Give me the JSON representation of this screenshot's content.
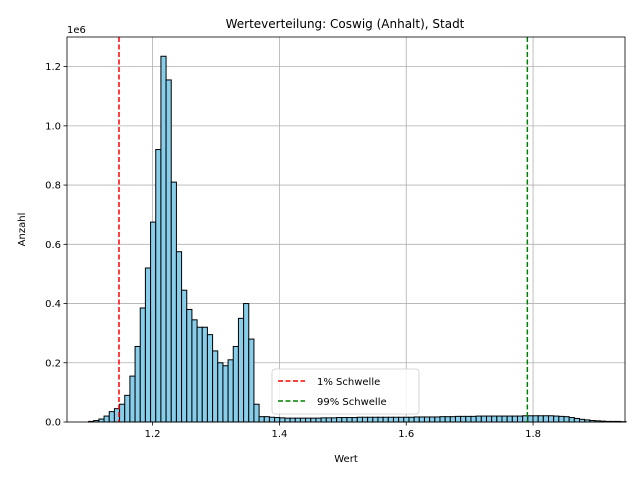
{
  "chart_data": {
    "type": "bar",
    "title": "Werteverteilung: Coswig (Anhalt), Stadt",
    "xlabel": "Wert",
    "ylabel": "Anzahl",
    "y_multiplier_label": "1e6",
    "xlim": [
      1.065,
      1.945
    ],
    "ylim": [
      0,
      1.3
    ],
    "x_ticks": [
      1.2,
      1.4,
      1.6,
      1.8
    ],
    "x_tick_labels": [
      "1.2",
      "1.4",
      "1.6",
      "1.8"
    ],
    "y_ticks": [
      0.0,
      0.2,
      0.4,
      0.6,
      0.8,
      1.0,
      1.2
    ],
    "y_tick_labels": [
      "0.0",
      "0.2",
      "0.4",
      "0.6",
      "0.8",
      "1.0",
      "1.2"
    ],
    "grid": true,
    "bar_color": "#87ceeb",
    "bin_start": 1.099,
    "bin_width": 0.00815,
    "values": [
      0.002,
      0.005,
      0.01,
      0.02,
      0.035,
      0.045,
      0.06,
      0.09,
      0.155,
      0.255,
      0.385,
      0.52,
      0.675,
      0.92,
      1.235,
      1.155,
      0.81,
      0.575,
      0.445,
      0.38,
      0.345,
      0.32,
      0.32,
      0.295,
      0.24,
      0.2,
      0.19,
      0.21,
      0.255,
      0.35,
      0.4,
      0.28,
      0.06,
      0.018,
      0.018,
      0.016,
      0.015,
      0.014,
      0.013,
      0.013,
      0.013,
      0.013,
      0.013,
      0.013,
      0.013,
      0.014,
      0.014,
      0.014,
      0.015,
      0.015,
      0.015,
      0.015,
      0.016,
      0.016,
      0.016,
      0.016,
      0.016,
      0.016,
      0.016,
      0.016,
      0.016,
      0.016,
      0.016,
      0.017,
      0.017,
      0.017,
      0.017,
      0.017,
      0.018,
      0.018,
      0.018,
      0.019,
      0.019,
      0.019,
      0.019,
      0.02,
      0.02,
      0.02,
      0.02,
      0.02,
      0.02,
      0.02,
      0.02,
      0.02,
      0.021,
      0.021,
      0.021,
      0.021,
      0.021,
      0.021,
      0.02,
      0.019,
      0.018,
      0.015,
      0.012,
      0.009,
      0.007,
      0.005,
      0.004,
      0.003,
      0.002,
      0.002,
      0.002,
      0.001
    ],
    "thresholds": [
      {
        "name": "1% Schwelle",
        "value": 1.147,
        "color": "#ff0000"
      },
      {
        "name": "99% Schwelle",
        "value": 1.791,
        "color": "#008000"
      }
    ],
    "legend_position": "lower center"
  }
}
